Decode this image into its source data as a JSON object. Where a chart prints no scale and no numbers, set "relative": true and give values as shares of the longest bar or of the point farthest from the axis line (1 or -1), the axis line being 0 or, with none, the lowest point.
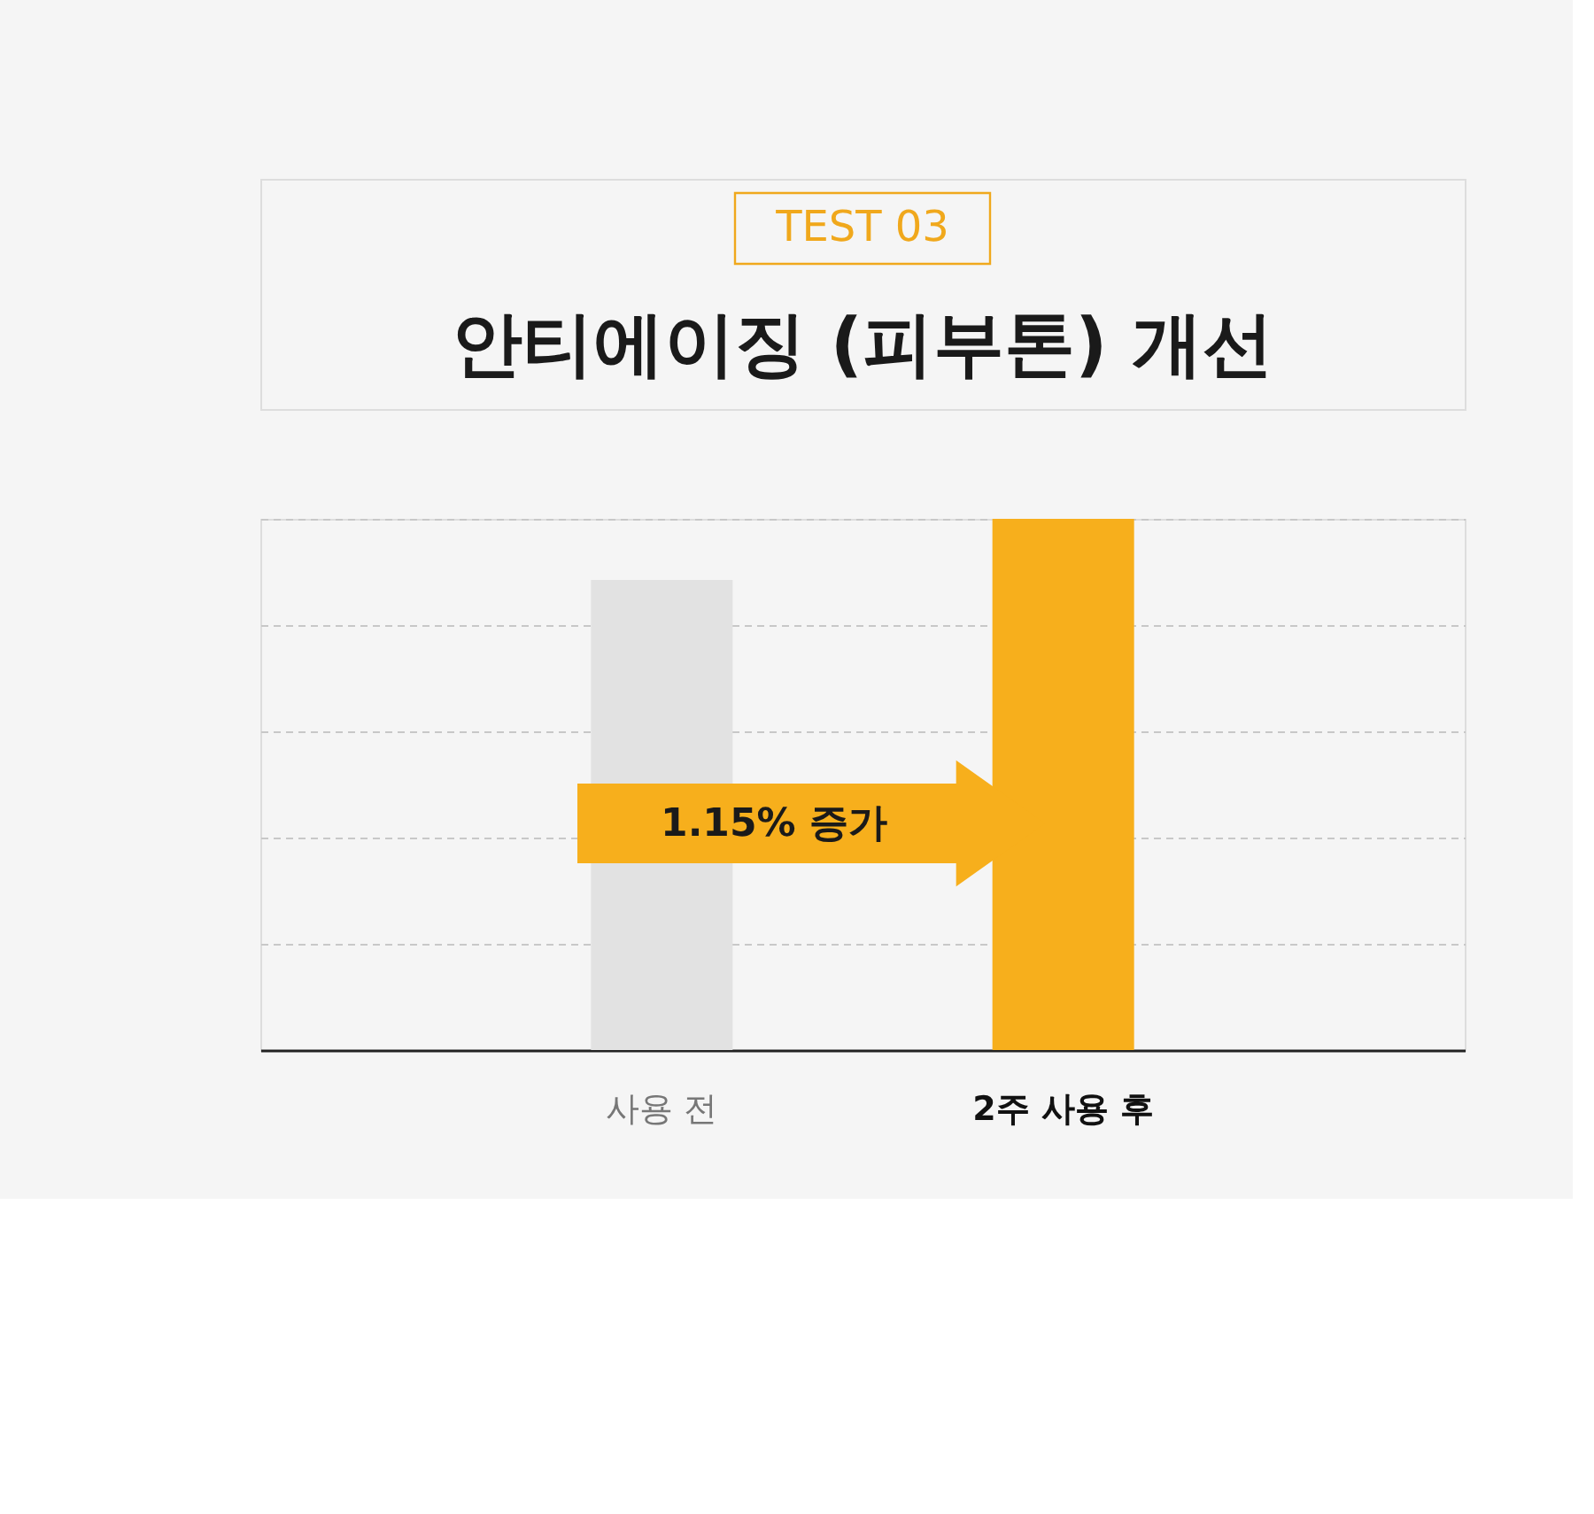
{
  "chart_data": {
    "type": "bar",
    "subtitle": "TEST 03",
    "title": "안티에이징 (피부톤) 개선",
    "categories": [
      "사용 전",
      "2주 사용 후"
    ],
    "values": [
      0.885,
      1
    ],
    "colors": [
      "#e2e2e2",
      "#f7af1c"
    ],
    "relative": true,
    "grid": "y",
    "annotations": [
      "1.15% 증가"
    ]
  }
}
